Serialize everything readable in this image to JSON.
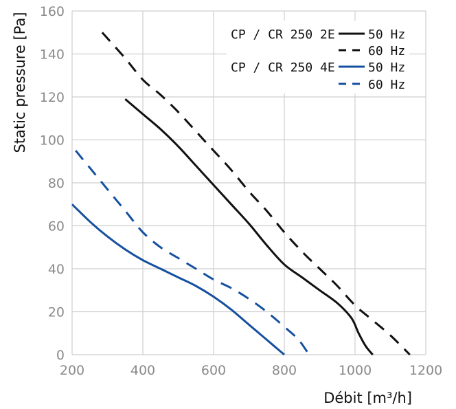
{
  "chart_data": {
    "type": "line",
    "title": "",
    "xlabel": "Débit [m³/h]",
    "ylabel": "Static pressure [Pa]",
    "xlim": [
      200,
      1200
    ],
    "ylim": [
      0,
      160
    ],
    "xticks": [
      200,
      400,
      600,
      800,
      1000,
      1200
    ],
    "yticks": [
      0,
      20,
      40,
      60,
      80,
      100,
      120,
      140,
      160
    ],
    "grid": true,
    "legend_position": "top-right",
    "legend_groups": [
      {
        "label": "CP / CR 250 2E",
        "entries": [
          "50 Hz",
          "60 Hz"
        ]
      },
      {
        "label": "CP / CR 250 4E",
        "entries": [
          "50 Hz",
          "60 Hz"
        ]
      }
    ],
    "series": [
      {
        "group": "CP / CR 250 2E",
        "name": "50 Hz",
        "color": "#111111",
        "dash": "solid",
        "points": [
          [
            350,
            119
          ],
          [
            400,
            112
          ],
          [
            450,
            105
          ],
          [
            500,
            97
          ],
          [
            550,
            88
          ],
          [
            600,
            79
          ],
          [
            650,
            70
          ],
          [
            700,
            61
          ],
          [
            750,
            51
          ],
          [
            800,
            42
          ],
          [
            850,
            36
          ],
          [
            900,
            30
          ],
          [
            950,
            24
          ],
          [
            990,
            17
          ],
          [
            1010,
            10
          ],
          [
            1030,
            4
          ],
          [
            1050,
            0
          ]
        ]
      },
      {
        "group": "CP / CR 250 2E",
        "name": "60 Hz",
        "color": "#111111",
        "dash": "dashed",
        "points": [
          [
            285,
            150
          ],
          [
            350,
            138
          ],
          [
            400,
            128
          ],
          [
            450,
            121
          ],
          [
            500,
            113
          ],
          [
            550,
            104
          ],
          [
            600,
            95
          ],
          [
            650,
            86
          ],
          [
            700,
            76
          ],
          [
            750,
            67
          ],
          [
            800,
            57
          ],
          [
            850,
            48
          ],
          [
            900,
            40
          ],
          [
            950,
            32
          ],
          [
            1000,
            23
          ],
          [
            1050,
            16
          ],
          [
            1100,
            9
          ],
          [
            1155,
            0
          ]
        ]
      },
      {
        "group": "CP / CR 250 4E",
        "name": "50 Hz",
        "color": "#1550a0",
        "dash": "solid",
        "points": [
          [
            200,
            70
          ],
          [
            250,
            62
          ],
          [
            300,
            55
          ],
          [
            350,
            49
          ],
          [
            400,
            44
          ],
          [
            450,
            40
          ],
          [
            500,
            36
          ],
          [
            550,
            32
          ],
          [
            600,
            27
          ],
          [
            650,
            21
          ],
          [
            700,
            14
          ],
          [
            750,
            7
          ],
          [
            800,
            0
          ]
        ]
      },
      {
        "group": "CP / CR 250 4E",
        "name": "60 Hz",
        "color": "#1550a0",
        "dash": "dashed",
        "points": [
          [
            210,
            95
          ],
          [
            250,
            87
          ],
          [
            300,
            77
          ],
          [
            350,
            67
          ],
          [
            400,
            57
          ],
          [
            450,
            50
          ],
          [
            500,
            45
          ],
          [
            550,
            40
          ],
          [
            600,
            35
          ],
          [
            650,
            31
          ],
          [
            700,
            26
          ],
          [
            750,
            20
          ],
          [
            800,
            13
          ],
          [
            840,
            7
          ],
          [
            870,
            0
          ]
        ]
      }
    ]
  }
}
